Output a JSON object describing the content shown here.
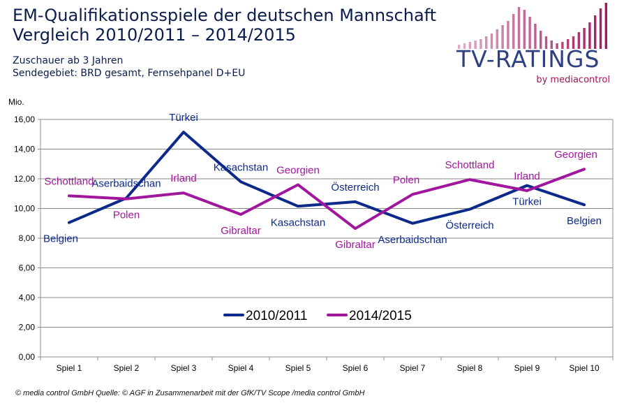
{
  "header": {
    "title_line1": "EM-Qualifikationsspiele der deutschen Mannschaft",
    "title_line2": "Vergleich 2010/2011 – 2014/2015",
    "subtitle_line1": "Zuschauer ab 3 Jahren",
    "subtitle_line2": "Sendegebiet: BRD gesamt, Fernsehpanel D+EU"
  },
  "logo": {
    "text": "TV-RATINGS",
    "byline": "by mediacontrol",
    "color_main": "#2e3f84",
    "color_accent": "#a0145c",
    "icon": "equalizer-bars-icon"
  },
  "footer": {
    "text": "© media control GmbH  Quelle: © AGF in Zusammenarbeit mit der GfK/TV Scope  /media control GmbH"
  },
  "chart_data": {
    "type": "line",
    "unit_label": "Mio.",
    "categories": [
      "Spiel 1",
      "Spiel 2",
      "Spiel 3",
      "Spiel 4",
      "Spiel 5",
      "Spiel 6",
      "Spiel 7",
      "Spiel 8",
      "Spiel 9",
      "Spiel 10"
    ],
    "y_ticks": [
      "0,00",
      "2,00",
      "4,00",
      "6,00",
      "8,00",
      "10,00",
      "12,00",
      "14,00",
      "16,00"
    ],
    "ylim": [
      0,
      16
    ],
    "grid": true,
    "legend_position": "bottom-center",
    "series": [
      {
        "name": "2010/2011",
        "color": "#0d2a8a",
        "values": [
          9.05,
          10.7,
          15.15,
          11.8,
          10.15,
          10.45,
          9.0,
          9.95,
          11.55,
          10.25
        ],
        "labels": [
          "Belgien",
          "Aserbaidschan",
          "Türkei",
          "Kasachstan",
          "Kasachstan",
          "Österreich",
          "Aserbaidschan",
          "Österreich",
          "Türkei",
          "Belgien"
        ]
      },
      {
        "name": "2014/2015",
        "color": "#a0169c",
        "values": [
          10.85,
          10.65,
          11.05,
          9.6,
          11.6,
          8.65,
          10.95,
          11.95,
          11.2,
          12.65
        ],
        "labels": [
          "Schottland",
          "Polen",
          "Irland",
          "Gibraltar",
          "Georgien",
          "Gibraltar",
          "Polen",
          "Schottland",
          "Irland",
          "Georgien"
        ]
      }
    ]
  }
}
